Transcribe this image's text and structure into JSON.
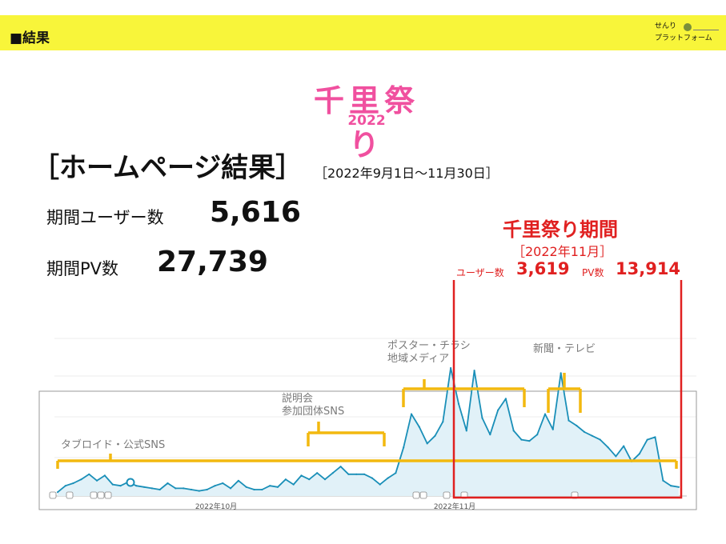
{
  "header": {
    "title": "■結果",
    "brand_line1": "せんり",
    "brand_line2": "プラットフォーム"
  },
  "logo": {
    "name": "千里祭り",
    "year": "2022"
  },
  "summary": {
    "title": "［ホームページ結果］",
    "period": "［2022年9月1日～11月30日］",
    "users_label": "期間ユーザー数",
    "users_value": "5,616",
    "pv_label": "期間PV数",
    "pv_value": "27,739"
  },
  "festival": {
    "title": "千里祭り期間",
    "period": "［2022年11月］",
    "users_label": "ユーザー数",
    "users_value": "3,619",
    "pv_label": "PV数",
    "pv_value": "13,914"
  },
  "colors": {
    "header_band": "#f8f53a",
    "logo": "#f0509f",
    "festival": "#e02020",
    "line": "#1a8fb8",
    "area": "#e1f1f8",
    "bracket": "#f2b90f"
  },
  "chart_data": {
    "type": "area",
    "x_labels": [
      "2022年10月",
      "2022年11月"
    ],
    "annotations": [
      {
        "text": "タブロイド・公式SNS"
      },
      {
        "text": "説明会\n参加団体SNS"
      },
      {
        "text": "ポスター・チラシ\n地域メディア"
      },
      {
        "text": "新聞・テレビ"
      }
    ],
    "series": [
      {
        "values": [
          3,
          8,
          10,
          13,
          17,
          12,
          16,
          9,
          8,
          11,
          8,
          7,
          6,
          5,
          10,
          6,
          6,
          5,
          4,
          5,
          8,
          10,
          6,
          12,
          7,
          5,
          5,
          8,
          7,
          13,
          9,
          16,
          13,
          18,
          13,
          18,
          23,
          17,
          17,
          17,
          14,
          9,
          14,
          18,
          38,
          64,
          54,
          41,
          47,
          58,
          100,
          72,
          51,
          98,
          61,
          48,
          67,
          76,
          51,
          44,
          43,
          48,
          64,
          52,
          96,
          59,
          55,
          50,
          47,
          44,
          38,
          31,
          39,
          27,
          33,
          44,
          46,
          12,
          8,
          7
        ]
      }
    ],
    "grid": true
  }
}
